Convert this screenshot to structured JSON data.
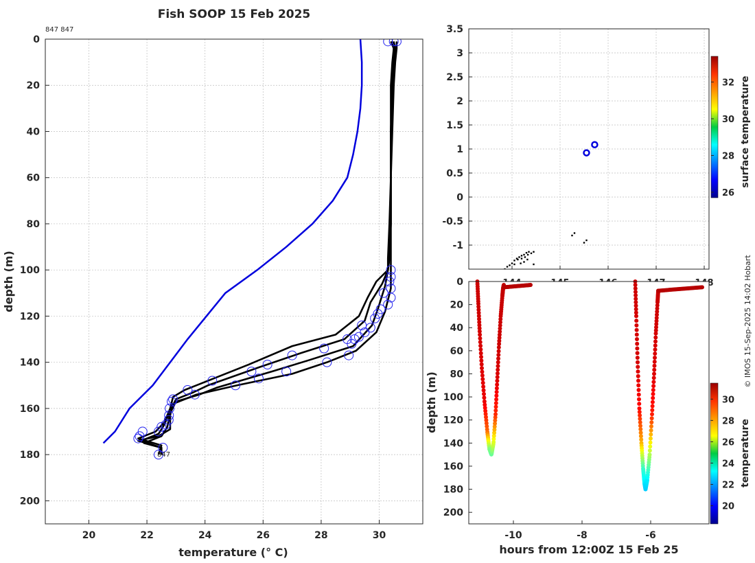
{
  "chart_data": [
    {
      "id": "profile",
      "type": "line",
      "title": "Fish SOOP 15 Feb 2025",
      "xlabel": "temperature (° C)",
      "ylabel": "depth (m)",
      "xlim": [
        18.5,
        31.5
      ],
      "ylim": [
        210,
        0
      ],
      "xticks": [
        "20",
        "22",
        "24",
        "26",
        "28",
        "30"
      ],
      "yticks": [
        "0",
        "20",
        "40",
        "60",
        "80",
        "100",
        "120",
        "140",
        "160",
        "180",
        "200"
      ],
      "annotations": {
        "top_left": "847 847",
        "cast_label": "847"
      },
      "climatology": {
        "name": "climatology",
        "color": "#0000dd",
        "temperature": [
          29.35,
          29.4,
          29.4,
          29.35,
          29.25,
          29.1,
          28.9,
          28.4,
          27.7,
          26.8,
          25.8,
          24.7,
          23.4,
          22.2,
          21.4,
          20.9,
          20.5
        ],
        "depth": [
          0,
          10,
          20,
          30,
          40,
          50,
          60,
          70,
          80,
          90,
          100,
          110,
          130,
          150,
          160,
          170,
          175
        ]
      },
      "profiles": [
        {
          "name": "cast 1",
          "temperature": [
            30.4,
            30.5,
            30.5,
            30.45,
            30.4,
            30.4,
            30.35,
            30.3,
            30.3,
            29.9,
            29.6,
            29.3,
            28.5,
            27.0,
            25.5,
            23.7,
            23.3,
            22.9,
            22.8,
            22.6,
            22.3,
            21.7,
            22.5,
            22.4
          ],
          "depth": [
            1,
            4,
            10,
            20,
            40,
            60,
            80,
            95,
            100,
            105,
            112,
            120,
            128,
            133,
            141,
            150,
            152,
            155,
            160,
            166,
            170,
            173,
            176,
            180
          ]
        },
        {
          "name": "cast 2",
          "temperature": [
            30.5,
            30.55,
            30.5,
            30.45,
            30.4,
            30.4,
            30.4,
            30.35,
            30.3,
            30.1,
            29.7,
            29.5,
            28.8,
            27.3,
            25.9,
            24.1,
            23.6,
            23.0,
            22.8,
            22.6,
            22.4,
            21.8,
            22.5,
            22.5
          ],
          "depth": [
            1,
            4,
            10,
            20,
            40,
            60,
            80,
            95,
            100,
            106,
            114,
            122,
            130,
            136,
            142,
            150,
            153,
            156,
            161,
            167,
            171,
            174,
            177,
            180
          ]
        },
        {
          "name": "cast 3",
          "temperature": [
            30.45,
            30.5,
            30.45,
            30.4,
            30.4,
            30.4,
            30.4,
            30.35,
            30.3,
            30.2,
            29.95,
            29.75,
            29.1,
            27.6,
            26.3,
            24.4,
            23.8,
            23.0,
            22.8,
            22.7,
            22.5,
            21.9,
            22.5,
            22.5
          ],
          "depth": [
            1,
            4,
            10,
            20,
            40,
            60,
            80,
            95,
            100,
            107,
            117,
            124,
            133,
            139,
            144,
            151,
            154,
            157,
            162,
            168,
            172,
            175,
            177,
            180
          ]
        },
        {
          "name": "cast 4",
          "temperature": [
            30.6,
            30.6,
            30.55,
            30.5,
            30.45,
            30.4,
            30.4,
            30.4,
            30.4,
            30.4,
            30.2,
            29.9,
            29.2,
            28.2,
            27.0,
            25.1,
            23.7,
            22.9,
            22.8,
            22.8,
            22.4,
            21.7,
            22.5,
            22.5
          ],
          "depth": [
            1,
            4,
            10,
            20,
            40,
            60,
            80,
            95,
            100,
            108,
            118,
            127,
            135,
            140,
            145,
            150,
            154,
            158,
            163,
            169,
            172,
            174,
            177,
            180
          ]
        }
      ],
      "markers": {
        "color": "#2222ee",
        "temperature": [
          30.3,
          30.5,
          30.6,
          30.4,
          30.4,
          30.35,
          30.4,
          30.4,
          30.3,
          30.15,
          30.05,
          29.95,
          29.85,
          29.7,
          29.5,
          29.4,
          29.3,
          29.15,
          29.05,
          28.9,
          28.95,
          28.1,
          28.2,
          27.0,
          26.15,
          26.8,
          25.6,
          25.85,
          25.05,
          24.25,
          23.65,
          23.4,
          22.9,
          22.85,
          22.78,
          22.76,
          22.75,
          22.65,
          22.5,
          22.4,
          21.85,
          21.7,
          21.75,
          22.55,
          22.4
        ],
        "depth": [
          1,
          1,
          1,
          100,
          103,
          105,
          108,
          112,
          115,
          110,
          117,
          119,
          121,
          125,
          127,
          124,
          129,
          130,
          132,
          130,
          137,
          134,
          140,
          137,
          141,
          144,
          144,
          147,
          150,
          148,
          154,
          152,
          156,
          157,
          160,
          163,
          165,
          167,
          168,
          170,
          170,
          173,
          172,
          177,
          180
        ]
      }
    },
    {
      "id": "map",
      "type": "scatter",
      "xticks": [
        "144",
        "145",
        "146",
        "147",
        "148"
      ],
      "yticks": [
        "-1",
        "-0.5",
        "0",
        "0.5",
        "1",
        "1.5",
        "2",
        "2.5",
        "3",
        "3.5"
      ],
      "xlim": [
        143.1,
        148.1
      ],
      "ylim": [
        -1.5,
        3.5
      ],
      "colorbar": {
        "label": "surface temperature",
        "ticks": [
          "26",
          "28",
          "30",
          "32"
        ],
        "range": [
          25.7,
          33.4
        ]
      },
      "track": {
        "lon": [
          143.85,
          143.9,
          143.95,
          144.0,
          144.05,
          144.1,
          144.15,
          144.2,
          144.25,
          144.3,
          144.35,
          144.05,
          144.12,
          144.2,
          144.27,
          144.33,
          144.4,
          144.45,
          144.18,
          144.25,
          144.32,
          144.45,
          145.25,
          145.3,
          145.5,
          145.55
        ],
        "lat": [
          -1.5,
          -1.45,
          -1.42,
          -1.38,
          -1.32,
          -1.28,
          -1.25,
          -1.22,
          -1.2,
          -1.16,
          -1.14,
          -1.4,
          -1.3,
          -1.28,
          -1.25,
          -1.2,
          -1.17,
          -1.14,
          -1.38,
          -1.35,
          -1.3,
          -1.4,
          -0.8,
          -0.75,
          -0.95,
          -0.9
        ]
      },
      "casts": {
        "lon": [
          145.55,
          145.72
        ],
        "lat": [
          0.92,
          1.09
        ]
      }
    },
    {
      "id": "section",
      "type": "scatter",
      "xlabel": "hours from 12:00Z 15 Feb 25",
      "ylabel": "depth (m)",
      "xticks": [
        "-10",
        "-8",
        "-6"
      ],
      "yticks": [
        "0",
        "20",
        "40",
        "60",
        "80",
        "100",
        "120",
        "140",
        "160",
        "180",
        "200"
      ],
      "xlim": [
        -11.3,
        -4.3
      ],
      "ylim": [
        210,
        0
      ],
      "colorbar": {
        "label": "temperature",
        "ticks": [
          "20",
          "22",
          "24",
          "26",
          "28",
          "30"
        ],
        "range": [
          18.3,
          31.5
        ]
      },
      "cast_A": {
        "time": [
          -11.05,
          -11.02,
          -10.98,
          -10.92,
          -10.84,
          -10.76,
          -10.7,
          -10.64,
          -10.58,
          -10.52,
          -10.47,
          -10.42,
          -10.37,
          -10.32,
          -10.3,
          -10.28
        ],
        "depth": [
          0,
          20,
          45,
          75,
          105,
          130,
          145,
          150,
          140,
          115,
          85,
          55,
          30,
          12,
          6,
          3
        ],
        "temp": [
          30.5,
          30.5,
          30.4,
          30.3,
          30.1,
          28.5,
          25.0,
          24.5,
          26.0,
          29.3,
          30.3,
          30.5,
          30.5,
          30.6,
          30.6,
          30.7
        ]
      },
      "cast_B": {
        "time": [
          -6.45,
          -6.42,
          -6.38,
          -6.33,
          -6.27,
          -6.22,
          -6.18,
          -6.15,
          -6.1,
          -6.03,
          -5.96,
          -5.9,
          -5.85,
          -5.8,
          -5.78
        ],
        "depth": [
          0,
          30,
          70,
          110,
          140,
          162,
          175,
          180,
          172,
          150,
          115,
          80,
          45,
          18,
          8
        ],
        "temp": [
          30.5,
          30.4,
          30.4,
          29.8,
          27.5,
          24.0,
          23.0,
          22.6,
          23.0,
          25.5,
          29.5,
          30.3,
          30.4,
          30.5,
          30.6
        ]
      },
      "surface_tails": [
        {
          "time": [
            -10.28,
            -9.5
          ],
          "depth": [
            5,
            3
          ],
          "temp": 30.8
        },
        {
          "time": [
            -5.78,
            -4.5
          ],
          "depth": [
            8,
            5
          ],
          "temp": 30.8
        }
      ]
    }
  ],
  "credit": "© IMOS 15-Sep-2025 14:02 Hobart"
}
